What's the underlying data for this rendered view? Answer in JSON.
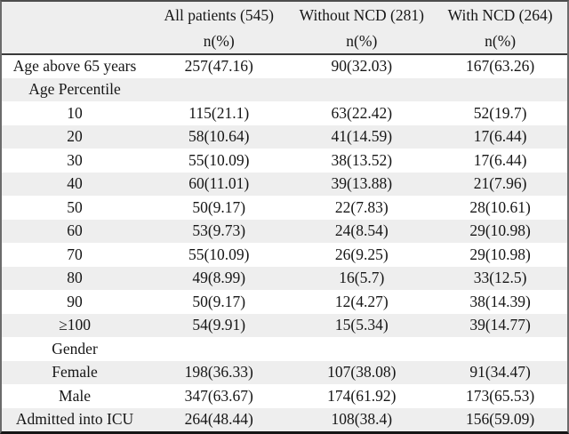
{
  "table": {
    "columns": [
      {
        "label": "",
        "sub": ""
      },
      {
        "label": "All patients (545)",
        "sub": "n(%)"
      },
      {
        "label": "Without NCD (281)",
        "sub": "n(%)"
      },
      {
        "label": "With NCD (264)",
        "sub": "n(%)"
      }
    ],
    "rows": [
      {
        "label": "Age above 65 years",
        "type": "data",
        "values": [
          "257(47.16)",
          "90(32.03)",
          "167(63.26)"
        ]
      },
      {
        "label": "Age Percentile",
        "type": "subheader",
        "values": [
          "",
          "",
          ""
        ]
      },
      {
        "label": "10",
        "type": "data",
        "values": [
          "115(21.1)",
          "63(22.42)",
          "52(19.7)"
        ]
      },
      {
        "label": "20",
        "type": "data",
        "values": [
          "58(10.64)",
          "41(14.59)",
          "17(6.44)"
        ]
      },
      {
        "label": "30",
        "type": "data",
        "values": [
          "55(10.09)",
          "38(13.52)",
          "17(6.44)"
        ]
      },
      {
        "label": "40",
        "type": "data",
        "values": [
          "60(11.01)",
          "39(13.88)",
          "21(7.96)"
        ]
      },
      {
        "label": "50",
        "type": "data",
        "values": [
          "50(9.17)",
          "22(7.83)",
          "28(10.61)"
        ]
      },
      {
        "label": "60",
        "type": "data",
        "values": [
          "53(9.73)",
          "24(8.54)",
          "29(10.98)"
        ]
      },
      {
        "label": "70",
        "type": "data",
        "values": [
          "55(10.09)",
          "26(9.25)",
          "29(10.98)"
        ]
      },
      {
        "label": "80",
        "type": "data",
        "values": [
          "49(8.99)",
          "16(5.7)",
          "33(12.5)"
        ]
      },
      {
        "label": "90",
        "type": "data",
        "values": [
          "50(9.17)",
          "12(4.27)",
          "38(14.39)"
        ]
      },
      {
        "label": "≥100",
        "type": "data",
        "values": [
          "54(9.91)",
          "15(5.34)",
          "39(14.77)"
        ]
      },
      {
        "label": "Gender",
        "type": "subheader",
        "values": [
          "",
          "",
          ""
        ]
      },
      {
        "label": "Female",
        "type": "data",
        "values": [
          "198(36.33)",
          "107(38.08)",
          "91(34.47)"
        ]
      },
      {
        "label": "Male",
        "type": "data",
        "values": [
          "347(63.67)",
          "174(61.92)",
          "173(65.53)"
        ]
      },
      {
        "label": "Admitted into ICU",
        "type": "data",
        "values": [
          "264(48.44)",
          "108(38.4)",
          "156(59.09)"
        ]
      }
    ],
    "colors": {
      "stripe": "#eeeeee",
      "header_background": "#eeeeee",
      "border": "#4d4d4d",
      "text": "#161616"
    }
  }
}
